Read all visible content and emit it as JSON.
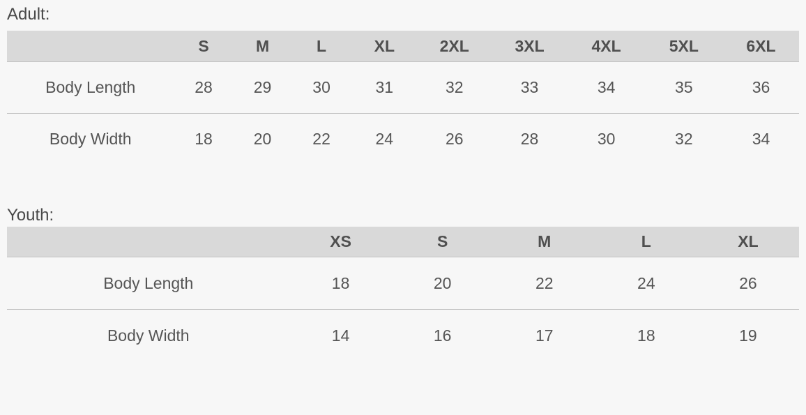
{
  "colors": {
    "page_background": "#f7f7f7",
    "header_band": "#d9d9d9",
    "body_text": "#555555",
    "header_text": "#4f4f4f",
    "divider": "#bcbcbc"
  },
  "sections": [
    {
      "label": "Adult:",
      "columns": [
        "S",
        "M",
        "L",
        "XL",
        "2XL",
        "3XL",
        "4XL",
        "5XL",
        "6XL"
      ],
      "rows": [
        {
          "label": "Body Length",
          "values": [
            28,
            29,
            30,
            31,
            32,
            33,
            34,
            35,
            36
          ]
        },
        {
          "label": "Body Width",
          "values": [
            18,
            20,
            22,
            24,
            26,
            28,
            30,
            32,
            34
          ]
        }
      ]
    },
    {
      "label": "Youth:",
      "columns": [
        "XS",
        "S",
        "M",
        "L",
        "XL"
      ],
      "rows": [
        {
          "label": "Body Length",
          "values": [
            18,
            20,
            22,
            24,
            26
          ]
        },
        {
          "label": "Body Width",
          "values": [
            14,
            16,
            17,
            18,
            19
          ]
        }
      ]
    }
  ]
}
